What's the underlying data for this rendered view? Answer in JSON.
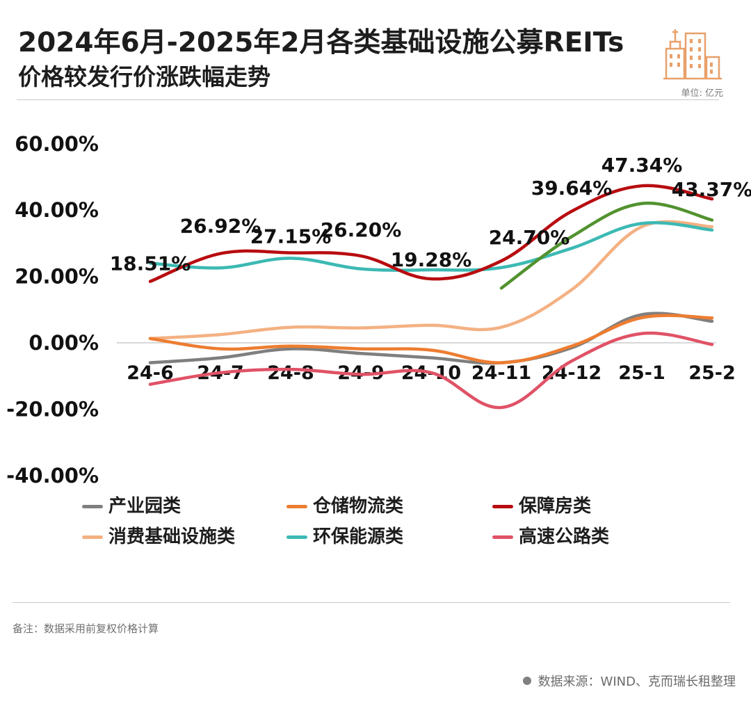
{
  "header": {
    "title": "2024年6月-2025年2月各类基础设施公募REITs",
    "subtitle": "价格较发行价涨跌幅走势",
    "unit": "单位: 亿元"
  },
  "colors": {
    "accent": "#E8A06A",
    "rule": "#c8c8c8",
    "text": "#1d1d1d"
  },
  "chart_data": {
    "type": "line",
    "categories": [
      "24-6",
      "24-7",
      "24-8",
      "24-9",
      "24-10",
      "24-11",
      "24-12",
      "25-1",
      "25-2"
    ],
    "ylim": [
      -40,
      60
    ],
    "yticks": [
      60,
      40,
      20,
      0,
      -20,
      -40
    ],
    "ytick_labels": [
      "60.00%",
      "40.00%",
      "20.00%",
      "0.00%",
      "-20.00%",
      "-40.00%"
    ],
    "grid": false,
    "legend_position": "bottom",
    "series": [
      {
        "name": "产业园类",
        "color": "#7f7f7f",
        "values": [
          -6,
          -4.5,
          -1.8,
          -3.2,
          -4.5,
          -6,
          -1.5,
          8.5,
          6.5
        ]
      },
      {
        "name": "仓储物流类",
        "color": "#ED7D31",
        "values": [
          1.3,
          -1.8,
          -1.0,
          -1.8,
          -2.2,
          -6,
          -1.0,
          7.6,
          7.5
        ]
      },
      {
        "name": "保障房类",
        "color": "#B80C10",
        "values": [
          18.51,
          26.92,
          27.15,
          26.2,
          19.28,
          24.7,
          39.64,
          47.34,
          43.37
        ]
      },
      {
        "name": "消费基础设施类",
        "color": "#F4B183",
        "values": [
          1.3,
          2.5,
          4.7,
          4.5,
          5.3,
          4.7,
          16,
          35,
          35
        ]
      },
      {
        "name": "环保能源类",
        "color": "#3CB9B4",
        "values": [
          24,
          22.6,
          25.5,
          22.3,
          22,
          22.7,
          28.5,
          36,
          34
        ]
      },
      {
        "name": "高速公路类",
        "color": "#E05266",
        "values": [
          -12.5,
          -9,
          -8,
          -9.5,
          -9,
          -19.5,
          -5.5,
          2.8,
          -0.5
        ]
      },
      {
        "name": "",
        "color": "#52922F",
        "values": [
          null,
          null,
          null,
          null,
          null,
          16.5,
          32,
          42,
          37
        ]
      }
    ],
    "annotations": [
      {
        "series": 2,
        "index": 0,
        "text": "18.51%"
      },
      {
        "series": 2,
        "index": 1,
        "text": "26.92%"
      },
      {
        "series": 2,
        "index": 2,
        "text": "27.15%"
      },
      {
        "series": 2,
        "index": 3,
        "text": "26.20%"
      },
      {
        "series": 2,
        "index": 4,
        "text": "19.28%"
      },
      {
        "series": 2,
        "index": 5,
        "text": "24.70%"
      },
      {
        "series": 2,
        "index": 6,
        "text": "39.64%"
      },
      {
        "series": 2,
        "index": 7,
        "text": "47.34%"
      },
      {
        "series": 2,
        "index": 8,
        "text": "43.37%"
      }
    ]
  },
  "footer": {
    "note": "备注：数据采用前复权价格计算",
    "source": "数据来源：WIND、克而瑞长租整理"
  }
}
